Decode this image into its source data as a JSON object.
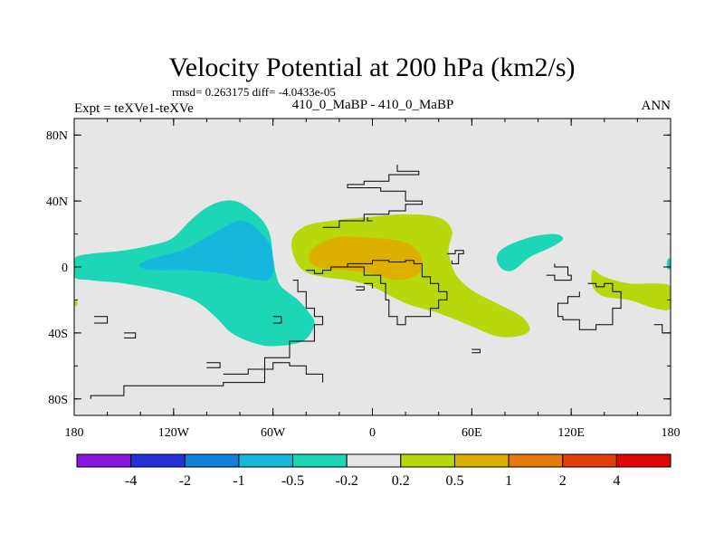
{
  "chart_data": {
    "type": "contour-map",
    "title": "Velocity Potential at 200 hPa (km2/s)",
    "stats": "rmsd= 0.263175 diff= -4.0433e-05",
    "left_label": "Expt = teXVe1-teXVe",
    "center_label": "410_0_MaBP - 410_0_MaBP",
    "right_label": "ANN",
    "x_ticks": [
      "180",
      "120W",
      "60W",
      "0",
      "60E",
      "120E",
      "180"
    ],
    "x_values": [
      -180,
      -120,
      -60,
      0,
      60,
      120,
      180
    ],
    "y_ticks": [
      "80N",
      "40N",
      "0",
      "40S",
      "80S"
    ],
    "y_values": [
      80,
      40,
      0,
      -40,
      -80
    ],
    "xlim": [
      -180,
      180
    ],
    "ylim": [
      -90,
      90
    ],
    "levels": [
      "-4",
      "-2",
      "-1",
      "-0.5",
      "-0.2",
      "0.2",
      "0.5",
      "1",
      "2",
      "4"
    ],
    "colors": [
      "#8a15e0",
      "#2332d8",
      "#0f7fd8",
      "#16b7dc",
      "#1cd6b6",
      "#e6e6e6",
      "#b8d80d",
      "#ddb000",
      "#e67a0a",
      "#e23c0a",
      "#df0505"
    ],
    "background_color": "#e6e6e6",
    "anomalies": [
      {
        "name": "pacific-negative-outer",
        "range": "-0.5 to -0.2",
        "color": "#1cd6b6",
        "outline": [
          [
            -180,
            5
          ],
          [
            -170,
            8
          ],
          [
            -150,
            10
          ],
          [
            -130,
            14
          ],
          [
            -120,
            18
          ],
          [
            -110,
            28
          ],
          [
            -100,
            36
          ],
          [
            -90,
            40
          ],
          [
            -80,
            39
          ],
          [
            -68,
            30
          ],
          [
            -62,
            20
          ],
          [
            -60,
            6
          ],
          [
            -58,
            -5
          ],
          [
            -55,
            -12
          ],
          [
            -45,
            -20
          ],
          [
            -38,
            -28
          ],
          [
            -35,
            -35
          ],
          [
            -42,
            -45
          ],
          [
            -60,
            -48
          ],
          [
            -72,
            -46
          ],
          [
            -85,
            -40
          ],
          [
            -95,
            -30
          ],
          [
            -108,
            -20
          ],
          [
            -128,
            -14
          ],
          [
            -150,
            -10
          ],
          [
            -170,
            -8
          ],
          [
            -180,
            -6
          ]
        ]
      },
      {
        "name": "pacific-negative-inner",
        "range": "-1 to -0.5",
        "color": "#16b7dc",
        "outline": [
          [
            -140,
            2
          ],
          [
            -130,
            6
          ],
          [
            -115,
            10
          ],
          [
            -100,
            18
          ],
          [
            -88,
            25
          ],
          [
            -80,
            28
          ],
          [
            -72,
            25
          ],
          [
            -62,
            14
          ],
          [
            -60,
            4
          ],
          [
            -60,
            -4
          ],
          [
            -64,
            -8
          ],
          [
            -75,
            -7
          ],
          [
            -90,
            -4
          ],
          [
            -110,
            -2
          ],
          [
            -130,
            -2
          ],
          [
            -138,
            -1
          ]
        ]
      },
      {
        "name": "africa-positive-outer",
        "range": "0.2 to 0.5",
        "color": "#b8d80d",
        "outline": [
          [
            -48,
            18
          ],
          [
            -40,
            25
          ],
          [
            -25,
            28
          ],
          [
            -5,
            30
          ],
          [
            20,
            32
          ],
          [
            40,
            30
          ],
          [
            48,
            22
          ],
          [
            46,
            10
          ],
          [
            50,
            -4
          ],
          [
            60,
            -14
          ],
          [
            75,
            -22
          ],
          [
            90,
            -30
          ],
          [
            95,
            -38
          ],
          [
            88,
            -42
          ],
          [
            75,
            -42
          ],
          [
            60,
            -36
          ],
          [
            40,
            -28
          ],
          [
            20,
            -22
          ],
          [
            0,
            -12
          ],
          [
            -15,
            -8
          ],
          [
            -30,
            -6
          ],
          [
            -42,
            -2
          ],
          [
            -48,
            8
          ]
        ]
      },
      {
        "name": "africa-positive-inner",
        "range": "0.5 to 1",
        "color": "#ddb000",
        "outline": [
          [
            -35,
            12
          ],
          [
            -22,
            18
          ],
          [
            -5,
            18
          ],
          [
            15,
            16
          ],
          [
            25,
            12
          ],
          [
            30,
            4
          ],
          [
            28,
            -4
          ],
          [
            15,
            -8
          ],
          [
            0,
            -4
          ],
          [
            -15,
            -2
          ],
          [
            -30,
            -1
          ],
          [
            -38,
            4
          ]
        ]
      },
      {
        "name": "asia-negative-blob",
        "range": "-0.5 to -0.2",
        "color": "#1cd6b6",
        "outline": [
          [
            75,
            6
          ],
          [
            80,
            12
          ],
          [
            95,
            18
          ],
          [
            110,
            20
          ],
          [
            115,
            17
          ],
          [
            108,
            12
          ],
          [
            95,
            6
          ],
          [
            85,
            -2
          ],
          [
            78,
            -1
          ]
        ]
      },
      {
        "name": "western-pacific-positive",
        "range": "0.2 to 0.5",
        "color": "#b8d80d",
        "outline": [
          [
            133,
            -2
          ],
          [
            140,
            -6
          ],
          [
            155,
            -10
          ],
          [
            170,
            -10
          ],
          [
            180,
            -12
          ],
          [
            180,
            -25
          ],
          [
            170,
            -25
          ],
          [
            155,
            -20
          ],
          [
            140,
            -18
          ],
          [
            133,
            -12
          ]
        ]
      },
      {
        "name": "east-edge-negative",
        "range": "-0.5 to -0.2",
        "color": "#1cd6b6",
        "outline": [
          [
            178,
            4
          ],
          [
            180,
            5
          ],
          [
            180,
            -1
          ],
          [
            178,
            -1
          ]
        ]
      },
      {
        "name": "west-edge-positive",
        "range": "0.2 to 0.5",
        "color": "#b8d80d",
        "outline": [
          [
            -180,
            -22
          ],
          [
            -179,
            -20
          ],
          [
            -178,
            -22
          ],
          [
            -179,
            -24
          ]
        ]
      }
    ],
    "coastline_segments": [
      [
        [
          -40,
          -2
        ],
        [
          -35,
          -4
        ],
        [
          -30,
          -2
        ],
        [
          -25,
          0
        ],
        [
          -15,
          2
        ],
        [
          0,
          4
        ],
        [
          10,
          3
        ],
        [
          20,
          4
        ],
        [
          25,
          2
        ],
        [
          30,
          0
        ],
        [
          30,
          -6
        ],
        [
          35,
          -10
        ],
        [
          40,
          -15
        ],
        [
          45,
          -20
        ],
        [
          40,
          -25
        ],
        [
          35,
          -30
        ],
        [
          20,
          -35
        ],
        [
          15,
          -30
        ],
        [
          10,
          -20
        ],
        [
          8,
          -10
        ],
        [
          5,
          -5
        ],
        [
          -5,
          0
        ],
        [
          -15,
          2
        ]
      ],
      [
        [
          -48,
          -8
        ],
        [
          -45,
          -15
        ],
        [
          -40,
          -25
        ],
        [
          -35,
          -30
        ],
        [
          -30,
          -35
        ],
        [
          -35,
          -45
        ],
        [
          -50,
          -55
        ],
        [
          -65,
          -70
        ],
        [
          -90,
          -72
        ],
        [
          -150,
          -78
        ],
        [
          -170,
          -80
        ]
      ],
      [
        [
          -90,
          -65
        ],
        [
          -75,
          -62
        ],
        [
          -60,
          -58
        ],
        [
          -50,
          -60
        ],
        [
          -40,
          -65
        ],
        [
          -30,
          -70
        ]
      ],
      [
        [
          -30,
          24
        ],
        [
          -20,
          28
        ],
        [
          -5,
          32
        ],
        [
          10,
          34
        ],
        [
          20,
          38
        ],
        [
          30,
          40
        ],
        [
          20,
          46
        ],
        [
          5,
          48
        ],
        [
          -8,
          48
        ],
        [
          -15,
          50
        ],
        [
          -5,
          52
        ],
        [
          10,
          56
        ],
        [
          28,
          58
        ],
        [
          15,
          62
        ]
      ],
      [
        [
          45,
          8
        ],
        [
          50,
          10
        ],
        [
          55,
          8
        ],
        [
          52,
          2
        ],
        [
          48,
          4
        ]
      ],
      [
        [
          130,
          -10
        ],
        [
          135,
          -12
        ],
        [
          140,
          -10
        ],
        [
          145,
          -15
        ],
        [
          150,
          -20
        ],
        [
          150,
          -25
        ],
        [
          145,
          -35
        ],
        [
          135,
          -38
        ],
        [
          125,
          -32
        ],
        [
          115,
          -30
        ],
        [
          112,
          -22
        ],
        [
          118,
          -18
        ],
        [
          125,
          -15
        ]
      ],
      [
        [
          170,
          -35
        ],
        [
          175,
          -40
        ],
        [
          180,
          -45
        ]
      ],
      [
        [
          105,
          -5
        ],
        [
          110,
          -8
        ],
        [
          115,
          -8
        ],
        [
          120,
          -5
        ],
        [
          118,
          0
        ],
        [
          110,
          2
        ]
      ],
      [
        [
          -168,
          -30
        ],
        [
          -160,
          -30
        ],
        [
          -160,
          -34
        ],
        [
          -168,
          -34
        ]
      ],
      [
        [
          -150,
          -40
        ],
        [
          -143,
          -40
        ],
        [
          -143,
          -43
        ],
        [
          -150,
          -43
        ]
      ],
      [
        [
          -100,
          -58
        ],
        [
          -92,
          -58
        ],
        [
          -92,
          -61
        ],
        [
          -100,
          -61
        ]
      ],
      [
        [
          -60,
          -30
        ],
        [
          -55,
          -30
        ],
        [
          -55,
          -34
        ],
        [
          -60,
          -34
        ]
      ],
      [
        [
          -5,
          -10
        ],
        [
          0,
          -10
        ],
        [
          0,
          -13
        ]
      ],
      [
        [
          -10,
          -12
        ],
        [
          -5,
          -12
        ],
        [
          -5,
          -14
        ],
        [
          -10,
          -14
        ]
      ],
      [
        [
          -3,
          30
        ],
        [
          -3,
          28
        ],
        [
          0,
          28
        ]
      ],
      [
        [
          60,
          -50
        ],
        [
          65,
          -50
        ],
        [
          65,
          -52
        ],
        [
          60,
          -52
        ]
      ]
    ]
  }
}
